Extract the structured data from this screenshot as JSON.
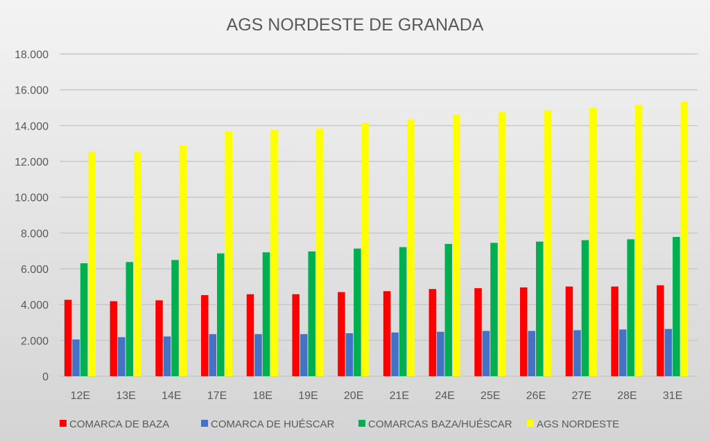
{
  "chart_data": {
    "type": "bar",
    "title": "AGS NORDESTE DE GRANADA",
    "xlabel": "",
    "ylabel": "",
    "ylim": [
      0,
      18000
    ],
    "yticks": [
      0,
      2000,
      4000,
      6000,
      8000,
      10000,
      12000,
      14000,
      16000,
      18000
    ],
    "ytick_labels": [
      "0",
      "2.000",
      "4.000",
      "6.000",
      "8.000",
      "10.000",
      "12.000",
      "14.000",
      "16.000",
      "18.000"
    ],
    "grid": true,
    "legend_position": "bottom",
    "categories": [
      "12E",
      "13E",
      "14E",
      "17E",
      "18E",
      "19E",
      "20E",
      "21E",
      "24E",
      "25E",
      "26E",
      "27E",
      "28E",
      "31E"
    ],
    "series": [
      {
        "name": "COMARCA DE BAZA",
        "color": "#ff0000",
        "values": [
          4270,
          4190,
          4240,
          4530,
          4580,
          4580,
          4700,
          4750,
          4870,
          4920,
          4960,
          5010,
          5010,
          5080
        ]
      },
      {
        "name": "COMARCA DE HUÉSCAR",
        "color": "#4472c4",
        "values": [
          2050,
          2180,
          2220,
          2350,
          2350,
          2350,
          2400,
          2440,
          2480,
          2530,
          2530,
          2570,
          2610,
          2640
        ]
      },
      {
        "name": "COMARCAS BAZA/HUÉSCAR",
        "color": "#00b050",
        "values": [
          6310,
          6380,
          6490,
          6860,
          6920,
          6970,
          7130,
          7210,
          7390,
          7450,
          7520,
          7600,
          7650,
          7780
        ]
      },
      {
        "name": "AGS NORDESTE",
        "color": "#ffff00",
        "values": [
          12540,
          12540,
          12900,
          13680,
          13760,
          13830,
          14160,
          14340,
          14610,
          14750,
          14870,
          15010,
          15160,
          15340
        ]
      }
    ]
  }
}
